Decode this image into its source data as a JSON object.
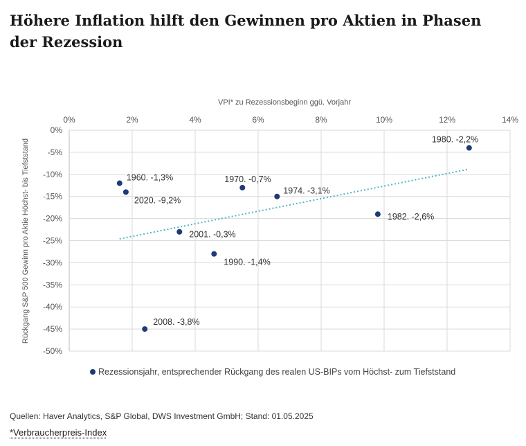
{
  "header": {
    "title": "Höhere Inflation hilft den Gewinnen pro Aktien in Phasen der Rezession"
  },
  "chart_data": {
    "type": "scatter",
    "xlabel": "VPI* zu Rezessionsbeginn ggü. Vorjahr",
    "ylabel": "Rückgang S&P 500 Gewinn pro Aktie Höchst- bis Tiefststand",
    "xlim": [
      0,
      14
    ],
    "ylim": [
      -50,
      0
    ],
    "x_ticks": [
      "0%",
      "2%",
      "4%",
      "6%",
      "8%",
      "10%",
      "12%",
      "14%"
    ],
    "y_ticks": [
      "0%",
      "-5%",
      "-10%",
      "-15%",
      "-20%",
      "-25%",
      "-30%",
      "-35%",
      "-40%",
      "-45%",
      "-50%"
    ],
    "x_axis_position": "top",
    "grid": true,
    "points": [
      {
        "x": 1.6,
        "y": -12,
        "label": "1960. -1,3%"
      },
      {
        "x": 1.8,
        "y": -14,
        "label": "2020. -9,2%"
      },
      {
        "x": 2.4,
        "y": -45,
        "label": "2008. -3,8%"
      },
      {
        "x": 3.5,
        "y": -23,
        "label": "2001. -0,3%"
      },
      {
        "x": 4.6,
        "y": -28,
        "label": "1990. -1,4%"
      },
      {
        "x": 5.5,
        "y": -13,
        "label": "1970. -0,7%"
      },
      {
        "x": 6.6,
        "y": -15,
        "label": "1974. -3,1%"
      },
      {
        "x": 9.8,
        "y": -19,
        "label": "1982. -2,6%"
      },
      {
        "x": 12.7,
        "y": -4,
        "label": "1980. -2,2%"
      }
    ],
    "trendline": {
      "x": [
        1.6,
        12.7
      ],
      "y": [
        -24.6,
        -8.8
      ]
    },
    "colors": {
      "points": "#1f3a78",
      "trendline": "#4bb7c4",
      "grid": "#d9d9d9"
    },
    "legend": "Rezessionsjahr, entsprechender Rückgang des realen US-BIPs vom Höchst- zum Tiefststand",
    "legend_position": "bottom"
  },
  "footer": {
    "source": "Quellen: Haver Analytics, S&P Global, DWS Investment GmbH; Stand: 01.05.2025",
    "footnote": "*Verbraucherpreis-Index"
  }
}
